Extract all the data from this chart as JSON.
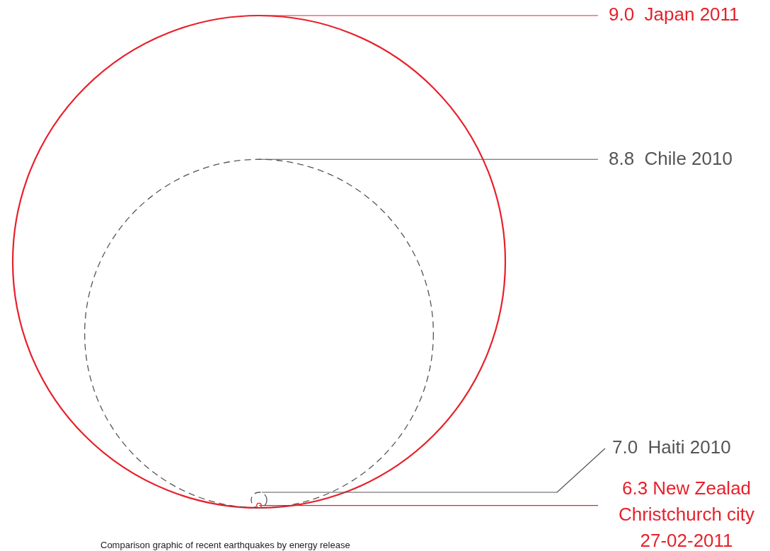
{
  "chart_data": {
    "type": "other",
    "annotations": [
      "Comparison graphic of recent earthquakes by energy release"
    ],
    "series": [
      {
        "name": "Japan 2011",
        "color": "#e8202a",
        "values": [
          9.0
        ],
        "value_labels": [
          "9.0"
        ],
        "line_style": "solid"
      },
      {
        "name": "Chile 2010",
        "color": "#555555",
        "values": [
          8.8
        ],
        "value_labels": [
          "8.8"
        ],
        "line_style": "dashed"
      },
      {
        "name": "Haiti 2010",
        "color": "#555555",
        "values": [
          7.0
        ],
        "value_labels": [
          "7.0"
        ],
        "line_style": "dashed"
      },
      {
        "name": "New Zealad\nChristchurch city\n27-02-2011",
        "color": "#e8202a",
        "values": [
          6.3
        ],
        "value_labels": [
          "6.3"
        ],
        "line_style": "solid"
      }
    ]
  }
}
